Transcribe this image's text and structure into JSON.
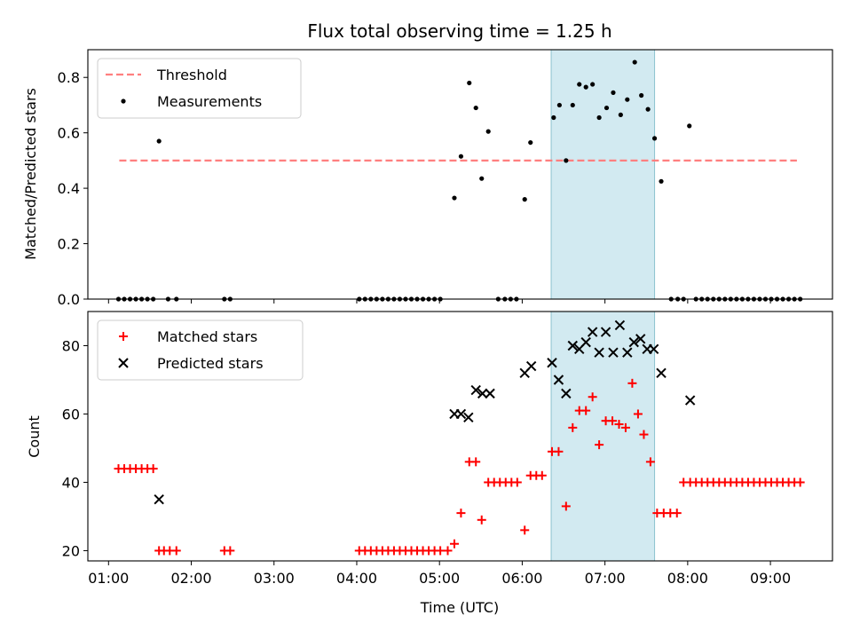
{
  "figure": {
    "title": "Flux total observing time = 1.25 h"
  },
  "chart_data": [
    {
      "type": "scatter",
      "ylabel": "Matched/Predicted stars",
      "xlim": [
        0.75,
        9.75
      ],
      "ylim": [
        0,
        0.9
      ],
      "yticks": [
        0.0,
        0.2,
        0.4,
        0.6,
        0.8
      ],
      "grid": false,
      "legend": "top-left",
      "threshold": {
        "name": "Threshold",
        "value": 0.5,
        "x": [
          1.13,
          9.32
        ],
        "color": "#ff7f7f"
      },
      "highlight": {
        "x0": 6.35,
        "x1": 7.6,
        "color": "#add8e6"
      },
      "series": [
        {
          "name": "Measurements",
          "marker": "dot",
          "color": "#000000",
          "x": [
            1.12,
            1.19,
            1.26,
            1.33,
            1.4,
            1.47,
            1.54,
            1.61,
            1.72,
            1.82,
            2.4,
            2.47,
            4.03,
            4.1,
            4.17,
            4.24,
            4.31,
            4.38,
            4.45,
            4.52,
            4.59,
            4.66,
            4.73,
            4.8,
            4.87,
            4.94,
            5.01,
            5.18,
            5.26,
            5.36,
            5.44,
            5.51,
            5.59,
            5.71,
            5.79,
            5.86,
            5.93,
            6.03,
            6.1,
            6.38,
            6.45,
            6.53,
            6.61,
            6.69,
            6.77,
            6.85,
            6.93,
            7.02,
            7.1,
            7.19,
            7.27,
            7.36,
            7.44,
            7.52,
            7.6,
            7.68,
            7.8,
            7.88,
            7.95,
            8.02,
            8.1,
            8.17,
            8.24,
            8.31,
            8.38,
            8.45,
            8.52,
            8.59,
            8.66,
            8.73,
            8.8,
            8.87,
            8.94,
            9.01,
            9.08,
            9.15,
            9.22,
            9.29,
            9.36
          ],
          "y": [
            0,
            0,
            0,
            0,
            0,
            0,
            0,
            0.57,
            0,
            0,
            0,
            0,
            0,
            0,
            0,
            0,
            0,
            0,
            0,
            0,
            0,
            0,
            0,
            0,
            0,
            0,
            0,
            0.365,
            0.515,
            0.78,
            0.69,
            0.435,
            0.605,
            0,
            0,
            0,
            0,
            0.36,
            0.565,
            0.655,
            0.7,
            0.5,
            0.7,
            0.775,
            0.765,
            0.775,
            0.655,
            0.69,
            0.745,
            0.665,
            0.72,
            0.855,
            0.735,
            0.685,
            0.58,
            0.425,
            0,
            0,
            0,
            0.625,
            0,
            0,
            0,
            0,
            0,
            0,
            0,
            0,
            0,
            0,
            0,
            0,
            0,
            0,
            0,
            0,
            0,
            0,
            0
          ]
        }
      ]
    },
    {
      "type": "scatter",
      "xlabel": "Time (UTC)",
      "ylabel": "Count",
      "xlim": [
        0.75,
        9.75
      ],
      "ylim": [
        17,
        90
      ],
      "yticks": [
        20,
        40,
        60,
        80
      ],
      "xticks": [
        1,
        2,
        3,
        4,
        5,
        6,
        7,
        8,
        9
      ],
      "xtick_labels": [
        "01:00",
        "02:00",
        "03:00",
        "04:00",
        "05:00",
        "06:00",
        "07:00",
        "08:00",
        "09:00"
      ],
      "grid": false,
      "legend": "top-left",
      "highlight": {
        "x0": 6.35,
        "x1": 7.6,
        "color": "#add8e6"
      },
      "series": [
        {
          "name": "Matched stars",
          "marker": "plus",
          "color": "#ff0000",
          "x": [
            1.12,
            1.19,
            1.26,
            1.33,
            1.4,
            1.47,
            1.54,
            1.61,
            1.67,
            1.74,
            1.82,
            2.4,
            2.47,
            4.03,
            4.1,
            4.17,
            4.24,
            4.31,
            4.38,
            4.45,
            4.52,
            4.59,
            4.66,
            4.73,
            4.8,
            4.87,
            4.94,
            5.01,
            5.1,
            5.18,
            5.26,
            5.36,
            5.44,
            5.51,
            5.59,
            5.66,
            5.73,
            5.8,
            5.87,
            5.94,
            6.03,
            6.1,
            6.17,
            6.24,
            6.36,
            6.44,
            6.53,
            6.61,
            6.69,
            6.77,
            6.85,
            6.93,
            7.01,
            7.09,
            7.17,
            7.25,
            7.33,
            7.4,
            7.47,
            7.55,
            7.63,
            7.71,
            7.79,
            7.87,
            7.95,
            8.03,
            8.1,
            8.17,
            8.24,
            8.31,
            8.38,
            8.45,
            8.52,
            8.59,
            8.66,
            8.73,
            8.8,
            8.87,
            8.94,
            9.01,
            9.08,
            9.15,
            9.22,
            9.29,
            9.36
          ],
          "y": [
            44,
            44,
            44,
            44,
            44,
            44,
            44,
            20,
            20,
            20,
            20,
            20,
            20,
            20,
            20,
            20,
            20,
            20,
            20,
            20,
            20,
            20,
            20,
            20,
            20,
            20,
            20,
            20,
            20,
            22,
            31,
            46,
            46,
            29,
            40,
            40,
            40,
            40,
            40,
            40,
            26,
            42,
            42,
            42,
            49,
            49,
            33,
            56,
            61,
            61,
            65,
            51,
            58,
            58,
            57,
            56,
            69,
            60,
            54,
            46,
            31,
            31,
            31,
            31,
            40,
            40,
            40,
            40,
            40,
            40,
            40,
            40,
            40,
            40,
            40,
            40,
            40,
            40,
            40,
            40,
            40,
            40,
            40,
            40,
            40
          ]
        },
        {
          "name": "Predicted stars",
          "marker": "x",
          "color": "#000000",
          "x": [
            1.61,
            5.18,
            5.26,
            5.35,
            5.44,
            5.52,
            5.61,
            6.03,
            6.11,
            6.36,
            6.44,
            6.53,
            6.61,
            6.69,
            6.77,
            6.85,
            6.93,
            7.01,
            7.1,
            7.18,
            7.27,
            7.35,
            7.43,
            7.51,
            7.59,
            7.68,
            8.03
          ],
          "y": [
            35,
            60,
            60,
            59,
            67,
            66,
            66,
            72,
            74,
            75,
            70,
            66,
            80,
            79,
            81,
            84,
            78,
            84,
            78,
            86,
            78,
            81,
            82,
            79,
            79,
            72,
            64
          ]
        }
      ]
    }
  ]
}
